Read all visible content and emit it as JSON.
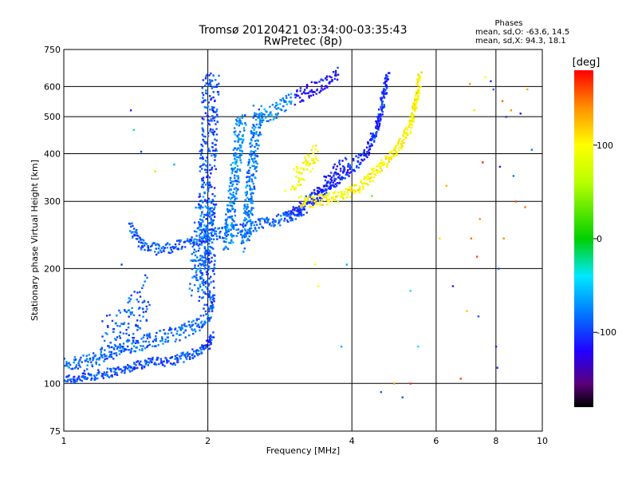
{
  "chart_data": {
    "type": "scatter",
    "title": "Tromsø 20120421 03:34:00-03:35:43",
    "subtitle": "RwPretec (8p)",
    "stats": {
      "heading": "Phases",
      "line_o": "mean, sd,O: -63.6, 14.5",
      "line_x": "mean, sd,X: 94.3, 18.1"
    },
    "xlabel": "Frequency [MHz]",
    "ylabel": "Stationary phase Virtual Height [km]",
    "x_scale": "log",
    "y_scale": "log",
    "xlim": [
      1,
      10
    ],
    "ylim": [
      75,
      750
    ],
    "grid": true,
    "x_ticks": [
      {
        "v": 1,
        "label": "1"
      },
      {
        "v": 2,
        "label": "2"
      },
      {
        "v": 4,
        "label": "4"
      },
      {
        "v": 6,
        "label": "6"
      },
      {
        "v": 8,
        "label": "8"
      },
      {
        "v": 10,
        "label": "10"
      }
    ],
    "y_ticks": [
      {
        "v": 75,
        "label": "75"
      },
      {
        "v": 100,
        "label": "100"
      },
      {
        "v": 200,
        "label": "200"
      },
      {
        "v": 300,
        "label": "300"
      },
      {
        "v": 400,
        "label": "400"
      },
      {
        "v": 500,
        "label": "500"
      },
      {
        "v": 600,
        "label": "600"
      },
      {
        "v": 750,
        "label": "750"
      }
    ],
    "colorbar": {
      "label": "[deg]",
      "range": [
        -180,
        180
      ],
      "ticks": [
        {
          "v": 100,
          "label": "100"
        },
        {
          "v": 0,
          "label": "0"
        },
        {
          "v": -100,
          "label": "-100"
        }
      ],
      "stops": [
        {
          "v": -180,
          "color": "#000000"
        },
        {
          "v": -155,
          "color": "#5a007a"
        },
        {
          "v": -120,
          "color": "#2200ff"
        },
        {
          "v": -80,
          "color": "#0078ff"
        },
        {
          "v": -40,
          "color": "#00e8ff"
        },
        {
          "v": 0,
          "color": "#00d000"
        },
        {
          "v": 60,
          "color": "#b8ff00"
        },
        {
          "v": 100,
          "color": "#ffff00"
        },
        {
          "v": 140,
          "color": "#ff9000"
        },
        {
          "v": 180,
          "color": "#ff0000"
        }
      ]
    },
    "traces": [
      {
        "points": [
          [
            1.0,
            103
          ],
          [
            1.06,
            103
          ],
          [
            1.12,
            104
          ],
          [
            1.2,
            106
          ],
          [
            1.3,
            108
          ],
          [
            1.4,
            111
          ],
          [
            1.5,
            114
          ],
          [
            1.6,
            114
          ],
          [
            1.7,
            115
          ],
          [
            1.8,
            118
          ],
          [
            1.9,
            121
          ],
          [
            2.0,
            126
          ],
          [
            2.05,
            135
          ]
        ],
        "phase": -95,
        "jitter": 0.012
      },
      {
        "points": [
          [
            1.0,
            112
          ],
          [
            1.1,
            113
          ],
          [
            1.2,
            118
          ],
          [
            1.3,
            122
          ],
          [
            1.4,
            126
          ],
          [
            1.5,
            130
          ],
          [
            1.6,
            132
          ],
          [
            1.75,
            136
          ],
          [
            1.9,
            142
          ],
          [
            2.0,
            150
          ],
          [
            2.05,
            165
          ]
        ],
        "phase": -85,
        "jitter": 0.02
      },
      {
        "points": [
          [
            1.38,
            258
          ],
          [
            1.45,
            232
          ],
          [
            1.55,
            225
          ],
          [
            1.7,
            228
          ],
          [
            1.85,
            236
          ],
          [
            2.0,
            244
          ],
          [
            2.2,
            250
          ],
          [
            2.4,
            255
          ],
          [
            2.6,
            262
          ],
          [
            2.8,
            268
          ],
          [
            3.0,
            275
          ],
          [
            3.2,
            280
          ]
        ],
        "phase": -90,
        "jitter": 0.015
      },
      {
        "points": [
          [
            1.98,
            160
          ],
          [
            1.99,
            250
          ],
          [
            2.0,
            350
          ],
          [
            2.01,
            450
          ],
          [
            2.02,
            560
          ],
          [
            2.03,
            650
          ]
        ],
        "phase": -95,
        "jitter": 0.02,
        "xjitter": 0.018
      },
      {
        "points": [
          [
            1.9,
            180
          ],
          [
            1.95,
            230
          ],
          [
            1.98,
            300
          ]
        ],
        "phase": -80,
        "jitter": 0.03,
        "xjitter": 0.02
      },
      {
        "points": [
          [
            2.2,
            230
          ],
          [
            2.25,
            300
          ],
          [
            2.3,
            400
          ],
          [
            2.35,
            500
          ]
        ],
        "phase": -75,
        "jitter": 0.02,
        "xjitter": 0.01
      },
      {
        "points": [
          [
            2.4,
            230
          ],
          [
            2.45,
            320
          ],
          [
            2.5,
            420
          ],
          [
            2.55,
            520
          ]
        ],
        "phase": -80,
        "jitter": 0.02,
        "xjitter": 0.01
      },
      {
        "points": [
          [
            2.55,
            490
          ],
          [
            2.7,
            510
          ],
          [
            2.85,
            530
          ],
          [
            3.0,
            555
          ]
        ],
        "phase": -70,
        "jitter": 0.02
      },
      {
        "points": [
          [
            2.95,
            275
          ],
          [
            3.1,
            290
          ],
          [
            3.3,
            305
          ],
          [
            3.5,
            320
          ],
          [
            3.7,
            340
          ],
          [
            3.9,
            360
          ],
          [
            4.1,
            380
          ],
          [
            4.3,
            410
          ],
          [
            4.5,
            460
          ],
          [
            4.6,
            520
          ],
          [
            4.7,
            600
          ],
          [
            4.75,
            650
          ]
        ],
        "phase": -105,
        "jitter": 0.015
      },
      {
        "points": [
          [
            3.3,
            310
          ],
          [
            3.5,
            330
          ],
          [
            3.7,
            355
          ],
          [
            3.9,
            370
          ]
        ],
        "phase": -110,
        "jitter": 0.03
      },
      {
        "points": [
          [
            3.05,
            560
          ],
          [
            3.2,
            580
          ],
          [
            3.4,
            600
          ],
          [
            3.6,
            625
          ],
          [
            3.75,
            650
          ]
        ],
        "phase": -115,
        "jitter": 0.02
      },
      {
        "points": [
          [
            3.1,
            300
          ],
          [
            3.3,
            300
          ],
          [
            3.6,
            305
          ],
          [
            3.9,
            315
          ],
          [
            4.2,
            330
          ],
          [
            4.5,
            360
          ],
          [
            4.8,
            390
          ],
          [
            5.1,
            430
          ],
          [
            5.3,
            480
          ],
          [
            5.45,
            550
          ],
          [
            5.55,
            640
          ]
        ],
        "phase": 100,
        "jitter": 0.015
      },
      {
        "points": [
          [
            3.0,
            340
          ],
          [
            3.2,
            370
          ],
          [
            3.4,
            400
          ]
        ],
        "phase": 95,
        "jitter": 0.03
      },
      {
        "points": [
          [
            1.2,
            130
          ],
          [
            1.3,
            135
          ],
          [
            1.4,
            150
          ],
          [
            1.5,
            170
          ]
        ],
        "phase": -90,
        "jitter": 0.06
      }
    ],
    "scatter": [
      [
        1.32,
        205,
        -100
      ],
      [
        1.38,
        520,
        -110
      ],
      [
        1.4,
        462,
        -30
      ],
      [
        1.45,
        405,
        -100
      ],
      [
        1.55,
        360,
        60
      ],
      [
        1.7,
        375,
        -60
      ],
      [
        2.9,
        320,
        100
      ],
      [
        3.35,
        205,
        100
      ],
      [
        3.4,
        180,
        100
      ],
      [
        3.8,
        125,
        -60
      ],
      [
        3.9,
        205,
        -60
      ],
      [
        4.4,
        310,
        40
      ],
      [
        4.6,
        95,
        -90
      ],
      [
        4.9,
        100,
        140
      ],
      [
        5.1,
        92,
        -90
      ],
      [
        5.3,
        100,
        170
      ],
      [
        5.3,
        175,
        -40
      ],
      [
        5.5,
        125,
        -40
      ],
      [
        6.5,
        180,
        -110
      ],
      [
        6.75,
        103,
        160
      ],
      [
        6.95,
        155,
        120
      ],
      [
        7.05,
        610,
        140
      ],
      [
        7.2,
        520,
        110
      ],
      [
        7.3,
        215,
        160
      ],
      [
        7.4,
        270,
        140
      ],
      [
        7.5,
        380,
        170
      ],
      [
        7.6,
        635,
        100
      ],
      [
        7.8,
        620,
        -110
      ],
      [
        7.9,
        590,
        -90
      ],
      [
        8.0,
        125,
        -110
      ],
      [
        8.05,
        110,
        -100
      ],
      [
        8.1,
        200,
        -90
      ],
      [
        8.15,
        370,
        -110
      ],
      [
        8.25,
        550,
        150
      ],
      [
        8.4,
        500,
        -100
      ],
      [
        8.6,
        520,
        140
      ],
      [
        8.8,
        300,
        160
      ],
      [
        9.0,
        510,
        -110
      ],
      [
        9.2,
        290,
        150
      ],
      [
        9.5,
        410,
        -80
      ],
      [
        7.1,
        240,
        150
      ],
      [
        7.35,
        150,
        -90
      ],
      [
        8.3,
        240,
        140
      ],
      [
        8.7,
        350,
        -80
      ],
      [
        9.3,
        590,
        130
      ],
      [
        6.1,
        240,
        110
      ],
      [
        6.3,
        330,
        130
      ]
    ]
  }
}
